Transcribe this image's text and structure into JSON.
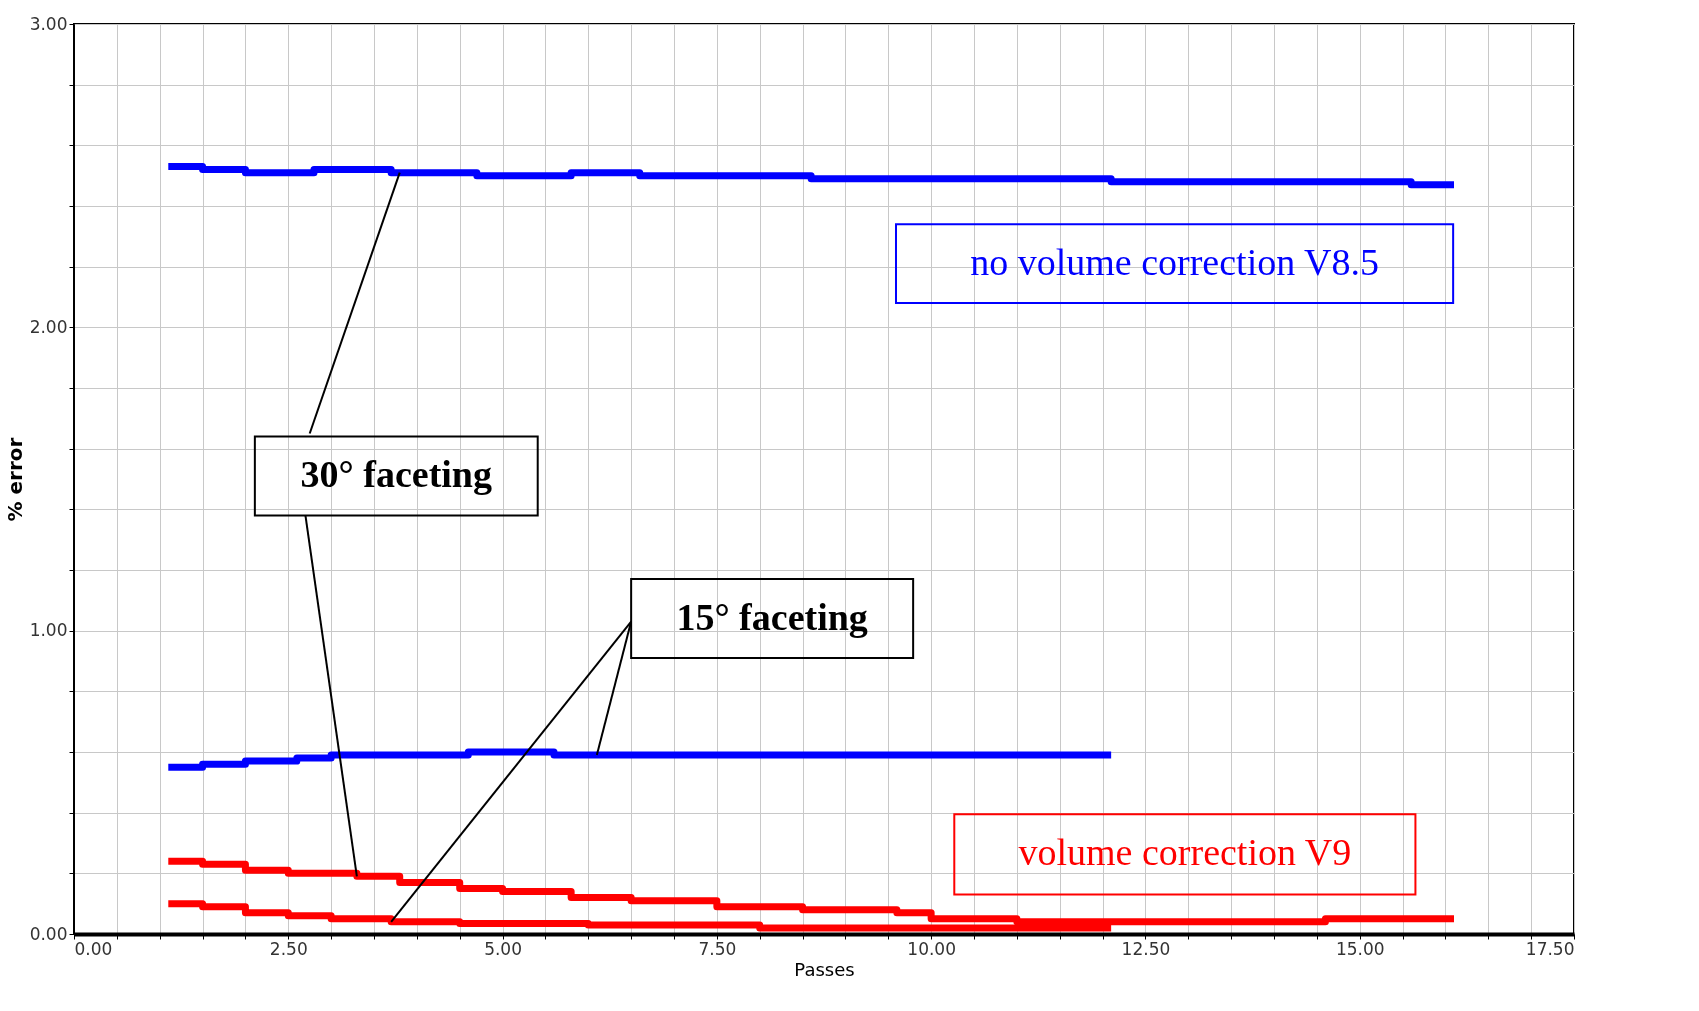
{
  "chart_data": {
    "type": "step",
    "xlabel": "Passes",
    "ylabel": "% error",
    "xlim": [
      0,
      17.5
    ],
    "ylim": [
      0,
      3
    ],
    "xticks": [
      {
        "value": 0,
        "label": "0.00"
      },
      {
        "value": 0.5,
        "label": null
      },
      {
        "value": 1,
        "label": null
      },
      {
        "value": 1.5,
        "label": null
      },
      {
        "value": 2,
        "label": null
      },
      {
        "value": 2.5,
        "label": "2.50"
      },
      {
        "value": 3,
        "label": null
      },
      {
        "value": 3.5,
        "label": null
      },
      {
        "value": 4,
        "label": null
      },
      {
        "value": 4.5,
        "label": null
      },
      {
        "value": 5,
        "label": "5.00"
      },
      {
        "value": 5.5,
        "label": null
      },
      {
        "value": 6,
        "label": null
      },
      {
        "value": 6.5,
        "label": null
      },
      {
        "value": 7,
        "label": null
      },
      {
        "value": 7.5,
        "label": "7.50"
      },
      {
        "value": 8,
        "label": null
      },
      {
        "value": 8.5,
        "label": null
      },
      {
        "value": 9,
        "label": null
      },
      {
        "value": 9.5,
        "label": null
      },
      {
        "value": 10,
        "label": "10.00"
      },
      {
        "value": 10.5,
        "label": null
      },
      {
        "value": 11,
        "label": null
      },
      {
        "value": 11.5,
        "label": null
      },
      {
        "value": 12,
        "label": null
      },
      {
        "value": 12.5,
        "label": "12.50"
      },
      {
        "value": 13,
        "label": null
      },
      {
        "value": 13.5,
        "label": null
      },
      {
        "value": 14,
        "label": null
      },
      {
        "value": 14.5,
        "label": null
      },
      {
        "value": 15,
        "label": "15.00"
      },
      {
        "value": 15.5,
        "label": null
      },
      {
        "value": 16,
        "label": null
      },
      {
        "value": 16.5,
        "label": null
      },
      {
        "value": 17,
        "label": null
      },
      {
        "value": 17.5,
        "label": "17.50"
      }
    ],
    "yticks": [
      {
        "value": 0,
        "label": "0.00"
      },
      {
        "value": 0.2,
        "label": null
      },
      {
        "value": 0.4,
        "label": null
      },
      {
        "value": 0.6,
        "label": null
      },
      {
        "value": 0.8,
        "label": null
      },
      {
        "value": 1,
        "label": "1.00"
      },
      {
        "value": 1.2,
        "label": null
      },
      {
        "value": 1.4,
        "label": null
      },
      {
        "value": 1.6,
        "label": null
      },
      {
        "value": 1.8,
        "label": null
      },
      {
        "value": 2,
        "label": "2.00"
      },
      {
        "value": 2.2,
        "label": null
      },
      {
        "value": 2.4,
        "label": null
      },
      {
        "value": 2.6,
        "label": null
      },
      {
        "value": 2.8,
        "label": null
      },
      {
        "value": 3,
        "label": "3.00"
      }
    ],
    "grid": true,
    "marker": "none",
    "line_style": "solid",
    "series": [
      {
        "color": "#0000ff",
        "x": [
          1.1,
          1.5,
          2.0,
          2.8,
          3.7,
          4.7,
          5.8,
          6.6,
          8.6,
          12.1,
          15.6,
          16.1
        ],
        "values": [
          2.53,
          2.52,
          2.51,
          2.52,
          2.51,
          2.5,
          2.51,
          2.5,
          2.49,
          2.48,
          2.47,
          2.47
        ]
      },
      {
        "color": "#0000ff",
        "x": [
          1.1,
          1.5,
          2.0,
          2.6,
          3.0,
          4.6,
          5.6,
          12.1
        ],
        "values": [
          0.55,
          0.56,
          0.57,
          0.58,
          0.59,
          0.6,
          0.59,
          0.59
        ]
      },
      {
        "color": "#ff0000",
        "x": [
          1.1,
          1.5,
          2.0,
          2.5,
          3.3,
          3.8,
          4.5,
          5.0,
          5.8,
          6.5,
          7.5,
          8.5,
          9.6,
          10.0,
          11.0,
          13.6,
          14.6,
          16.1
        ],
        "values": [
          0.24,
          0.23,
          0.21,
          0.2,
          0.19,
          0.17,
          0.15,
          0.14,
          0.12,
          0.11,
          0.09,
          0.08,
          0.07,
          0.05,
          0.04,
          0.04,
          0.05,
          0.05
        ]
      },
      {
        "color": "#ff0000",
        "x": [
          1.1,
          1.5,
          2.0,
          2.5,
          3.0,
          3.7,
          4.5,
          6.0,
          8.0,
          12.1
        ],
        "values": [
          0.1,
          0.09,
          0.07,
          0.06,
          0.05,
          0.04,
          0.035,
          0.03,
          0.02,
          0.02
        ]
      }
    ],
    "annotations": [
      "no volume correction V8.5",
      "volume correction V9",
      {
        "text": "30° faceting",
        "x": 3.8,
        "y": 2.51
      },
      {
        "text": "15° faceting",
        "x": 6.1,
        "y": 0.59
      }
    ]
  }
}
